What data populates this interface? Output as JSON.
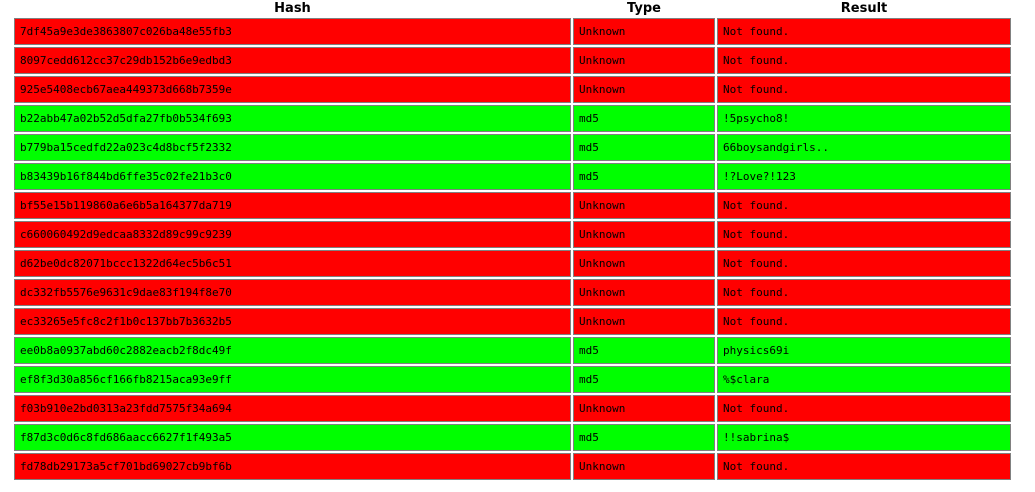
{
  "columns": {
    "hash": "Hash",
    "type": "Type",
    "result": "Result"
  },
  "colors": {
    "found": "#00ff00",
    "not_found": "#ff0000",
    "border": "#808080"
  },
  "rows": [
    {
      "hash": "7df45a9e3de3863807c026ba48e55fb3",
      "type": "Unknown",
      "result": "Not found.",
      "status": "not_found"
    },
    {
      "hash": "8097cedd612cc37c29db152b6e9edbd3",
      "type": "Unknown",
      "result": "Not found.",
      "status": "not_found"
    },
    {
      "hash": "925e5408ecb67aea449373d668b7359e",
      "type": "Unknown",
      "result": "Not found.",
      "status": "not_found"
    },
    {
      "hash": "b22abb47a02b52d5dfa27fb0b534f693",
      "type": "md5",
      "result": "!5psycho8!",
      "status": "found"
    },
    {
      "hash": "b779ba15cedfd22a023c4d8bcf5f2332",
      "type": "md5",
      "result": "66boysandgirls..",
      "status": "found"
    },
    {
      "hash": "b83439b16f844bd6ffe35c02fe21b3c0",
      "type": "md5",
      "result": "!?Love?!123",
      "status": "found"
    },
    {
      "hash": "bf55e15b119860a6e6b5a164377da719",
      "type": "Unknown",
      "result": "Not found.",
      "status": "not_found"
    },
    {
      "hash": "c660060492d9edcaa8332d89c99c9239",
      "type": "Unknown",
      "result": "Not found.",
      "status": "not_found"
    },
    {
      "hash": "d62be0dc82071bccc1322d64ec5b6c51",
      "type": "Unknown",
      "result": "Not found.",
      "status": "not_found"
    },
    {
      "hash": "dc332fb5576e9631c9dae83f194f8e70",
      "type": "Unknown",
      "result": "Not found.",
      "status": "not_found"
    },
    {
      "hash": "ec33265e5fc8c2f1b0c137bb7b3632b5",
      "type": "Unknown",
      "result": "Not found.",
      "status": "not_found"
    },
    {
      "hash": "ee0b8a0937abd60c2882eacb2f8dc49f",
      "type": "md5",
      "result": "physics69i",
      "status": "found"
    },
    {
      "hash": "ef8f3d30a856cf166fb8215aca93e9ff",
      "type": "md5",
      "result": "%$clara",
      "status": "found"
    },
    {
      "hash": "f03b910e2bd0313a23fdd7575f34a694",
      "type": "Unknown",
      "result": "Not found.",
      "status": "not_found"
    },
    {
      "hash": "f87d3c0d6c8fd686aacc6627f1f493a5",
      "type": "md5",
      "result": "!!sabrina$",
      "status": "found"
    },
    {
      "hash": "fd78db29173a5cf701bd69027cb9bf6b",
      "type": "Unknown",
      "result": "Not found.",
      "status": "not_found"
    }
  ]
}
